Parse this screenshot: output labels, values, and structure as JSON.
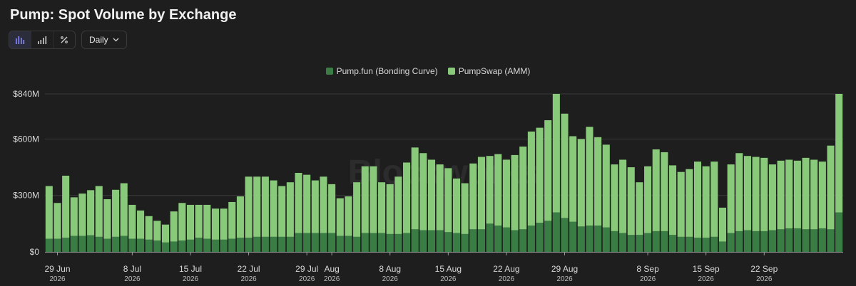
{
  "header": {
    "title": "Pump: Spot Volume by Exchange"
  },
  "toolbar": {
    "period_label": "Daily"
  },
  "watermark": "Blockworks",
  "colors": {
    "bonding": "#3a7d44",
    "amm": "#88c97a",
    "grid": "#3a3a3a",
    "background": "#1e1e1e"
  },
  "icons": [
    "bar-chart-icon",
    "stacked-bar-icon",
    "percent-icon",
    "chevron-down-icon"
  ],
  "chart_data": {
    "type": "bar",
    "stacked": true,
    "legend_position": "top-center",
    "grid": true,
    "ylim": [
      0,
      840
    ],
    "y_ticks": [
      {
        "value": 0,
        "label": "$0"
      },
      {
        "value": 300,
        "label": "$300M"
      },
      {
        "value": 600,
        "label": "$600M"
      },
      {
        "value": 840,
        "label": "$840M"
      }
    ],
    "x_ticks": [
      {
        "index": 1,
        "label": "29 Jun",
        "year": "2026"
      },
      {
        "index": 10,
        "label": "8 Jul",
        "year": "2026"
      },
      {
        "index": 17,
        "label": "15 Jul",
        "year": "2026"
      },
      {
        "index": 24,
        "label": "22 Jul",
        "year": "2026"
      },
      {
        "index": 31,
        "label": "29 Jul",
        "year": "2026"
      },
      {
        "index": 34,
        "label": "Aug",
        "year": "2026"
      },
      {
        "index": 41,
        "label": "8 Aug",
        "year": "2026"
      },
      {
        "index": 48,
        "label": "15 Aug",
        "year": "2026"
      },
      {
        "index": 55,
        "label": "22 Aug",
        "year": "2026"
      },
      {
        "index": 62,
        "label": "29 Aug",
        "year": "2026"
      },
      {
        "index": 72,
        "label": "8 Sep",
        "year": "2026"
      },
      {
        "index": 79,
        "label": "15 Sep",
        "year": "2026"
      },
      {
        "index": 86,
        "label": "22 Sep",
        "year": "2026"
      }
    ],
    "series": [
      {
        "name": "Pump.fun (Bonding Curve)",
        "color": "#3a7d44",
        "values": [
          70,
          70,
          75,
          85,
          85,
          88,
          80,
          70,
          80,
          85,
          70,
          70,
          65,
          60,
          50,
          55,
          60,
          65,
          75,
          70,
          65,
          65,
          70,
          75,
          75,
          80,
          80,
          80,
          80,
          80,
          100,
          100,
          100,
          100,
          100,
          85,
          85,
          80,
          100,
          100,
          100,
          95,
          95,
          100,
          120,
          115,
          115,
          115,
          105,
          100,
          95,
          120,
          120,
          150,
          140,
          130,
          115,
          120,
          140,
          155,
          165,
          210,
          180,
          160,
          135,
          140,
          140,
          130,
          110,
          100,
          90,
          90,
          100,
          110,
          110,
          90,
          80,
          80,
          75,
          75,
          80,
          55,
          100,
          110,
          115,
          110,
          110,
          115,
          120,
          125,
          125,
          120,
          120,
          125,
          120,
          210
        ]
      },
      {
        "name": "PumpSwap (AMM)",
        "color": "#88c97a",
        "values": [
          280,
          190,
          330,
          205,
          225,
          240,
          270,
          210,
          250,
          280,
          180,
          150,
          125,
          105,
          95,
          160,
          200,
          185,
          175,
          180,
          165,
          165,
          195,
          220,
          325,
          320,
          320,
          300,
          270,
          290,
          320,
          310,
          280,
          300,
          260,
          200,
          210,
          290,
          355,
          355,
          270,
          265,
          305,
          375,
          435,
          410,
          375,
          350,
          340,
          290,
          270,
          350,
          385,
          360,
          380,
          360,
          400,
          440,
          500,
          505,
          535,
          630,
          555,
          455,
          465,
          525,
          470,
          440,
          355,
          390,
          360,
          280,
          355,
          435,
          420,
          370,
          345,
          360,
          405,
          380,
          400,
          180,
          365,
          415,
          395,
          395,
          390,
          350,
          365,
          365,
          360,
          380,
          370,
          355,
          445,
          630
        ]
      }
    ]
  }
}
